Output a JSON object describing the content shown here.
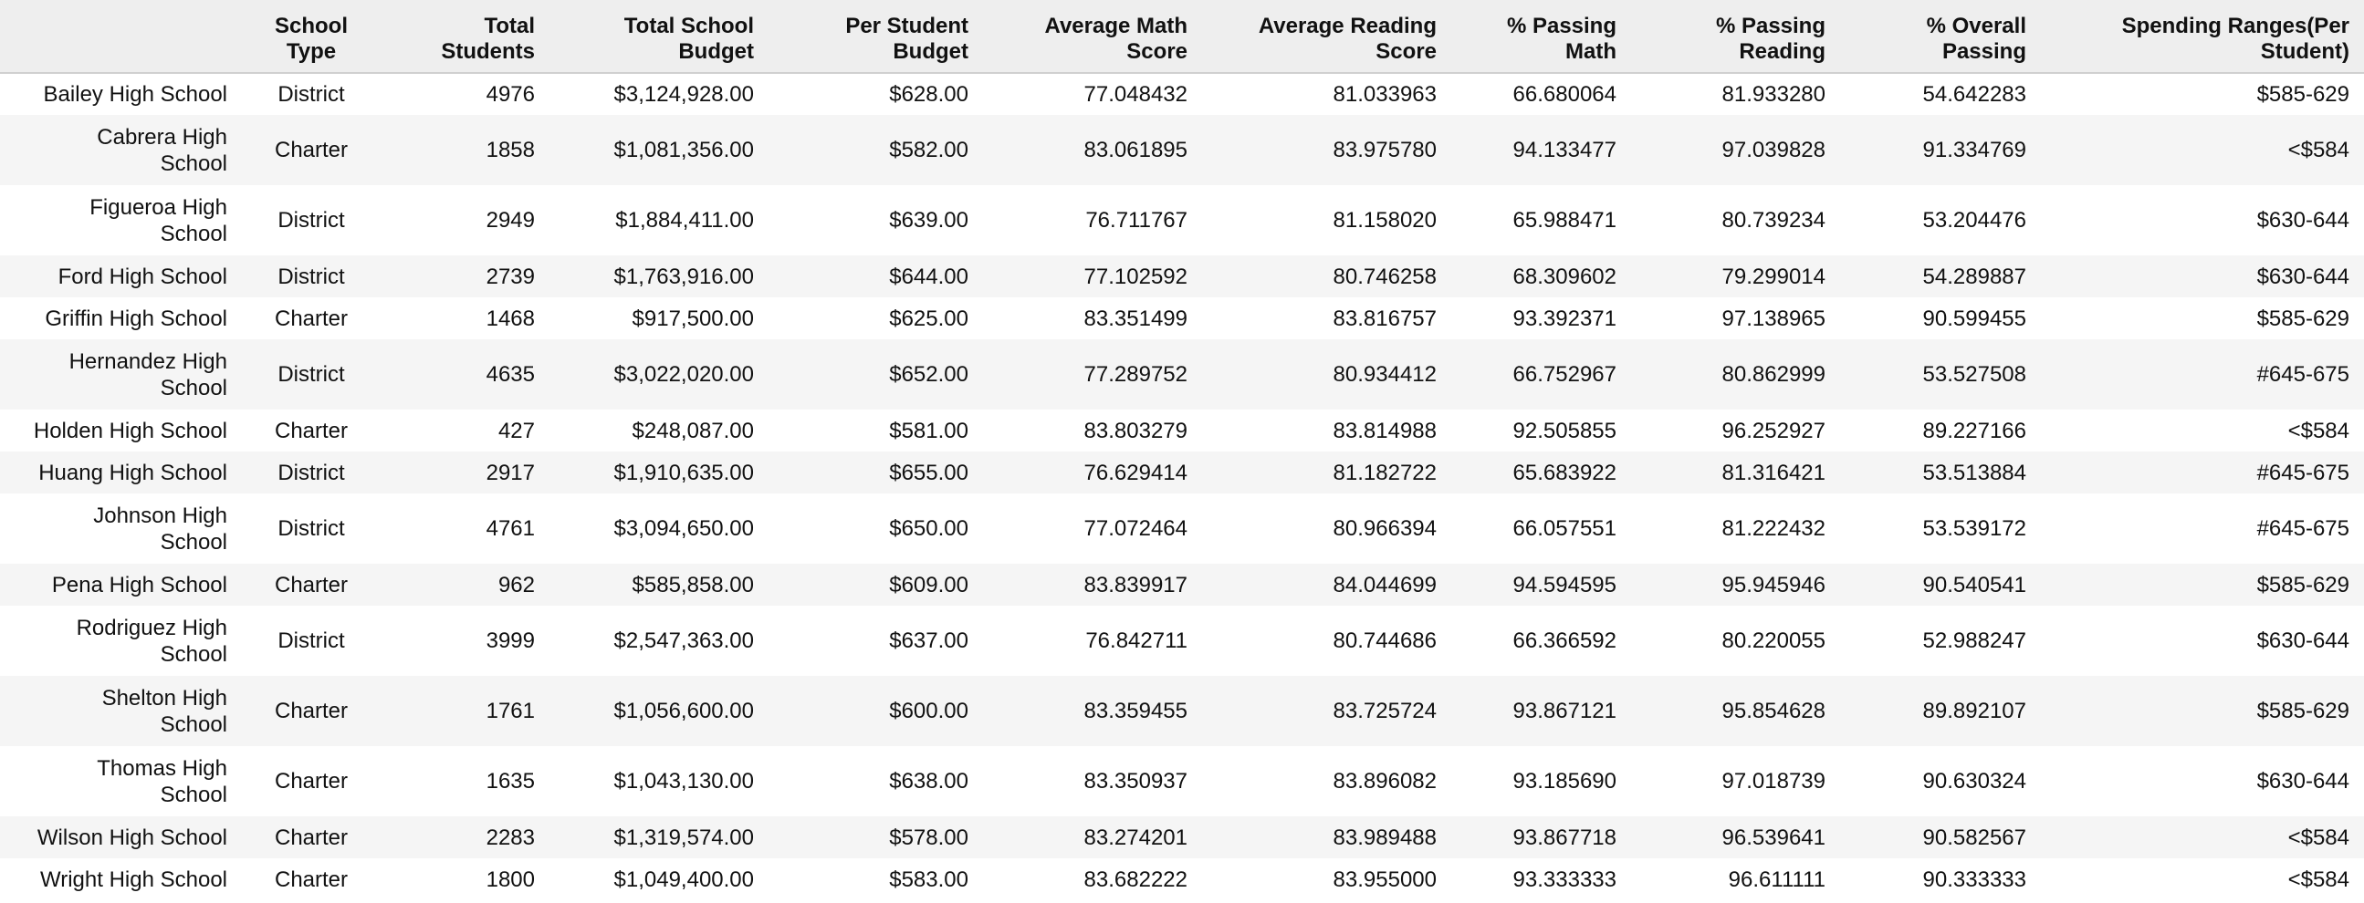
{
  "columns": [
    "",
    "School Type",
    "Total Students",
    "Total School Budget",
    "Per Student Budget",
    "Average Math Score",
    "Average Reading Score",
    "% Passing Math",
    "% Passing Reading",
    "% Overall Passing",
    "Spending Ranges(Per Student)"
  ],
  "column_lines": [
    [
      ""
    ],
    [
      "School",
      "Type"
    ],
    [
      "Total",
      "Students"
    ],
    [
      "Total School",
      "Budget"
    ],
    [
      "Per Student",
      "Budget"
    ],
    [
      "Average Math",
      "Score"
    ],
    [
      "Average Reading",
      "Score"
    ],
    [
      "% Passing",
      "Math"
    ],
    [
      "% Passing",
      "Reading"
    ],
    [
      "% Overall",
      "Passing"
    ],
    [
      "Spending Ranges(Per",
      "Student)"
    ]
  ],
  "rows": [
    {
      "name_lines": [
        "Bailey High School"
      ],
      "type": "District",
      "total": "4976",
      "budget": "$3,124,928.00",
      "per": "$628.00",
      "math": "77.048432",
      "read": "81.033963",
      "pmath": "66.680064",
      "pread": "81.933280",
      "overall": "54.642283",
      "spend": "$585-629"
    },
    {
      "name_lines": [
        "Cabrera High",
        "School"
      ],
      "type": "Charter",
      "total": "1858",
      "budget": "$1,081,356.00",
      "per": "$582.00",
      "math": "83.061895",
      "read": "83.975780",
      "pmath": "94.133477",
      "pread": "97.039828",
      "overall": "91.334769",
      "spend": "<$584"
    },
    {
      "name_lines": [
        "Figueroa High",
        "School"
      ],
      "type": "District",
      "total": "2949",
      "budget": "$1,884,411.00",
      "per": "$639.00",
      "math": "76.711767",
      "read": "81.158020",
      "pmath": "65.988471",
      "pread": "80.739234",
      "overall": "53.204476",
      "spend": "$630-644"
    },
    {
      "name_lines": [
        "Ford High School"
      ],
      "type": "District",
      "total": "2739",
      "budget": "$1,763,916.00",
      "per": "$644.00",
      "math": "77.102592",
      "read": "80.746258",
      "pmath": "68.309602",
      "pread": "79.299014",
      "overall": "54.289887",
      "spend": "$630-644"
    },
    {
      "name_lines": [
        "Griffin High School"
      ],
      "type": "Charter",
      "total": "1468",
      "budget": "$917,500.00",
      "per": "$625.00",
      "math": "83.351499",
      "read": "83.816757",
      "pmath": "93.392371",
      "pread": "97.138965",
      "overall": "90.599455",
      "spend": "$585-629"
    },
    {
      "name_lines": [
        "Hernandez High",
        "School"
      ],
      "type": "District",
      "total": "4635",
      "budget": "$3,022,020.00",
      "per": "$652.00",
      "math": "77.289752",
      "read": "80.934412",
      "pmath": "66.752967",
      "pread": "80.862999",
      "overall": "53.527508",
      "spend": "#645-675"
    },
    {
      "name_lines": [
        "Holden High School"
      ],
      "type": "Charter",
      "total": "427",
      "budget": "$248,087.00",
      "per": "$581.00",
      "math": "83.803279",
      "read": "83.814988",
      "pmath": "92.505855",
      "pread": "96.252927",
      "overall": "89.227166",
      "spend": "<$584"
    },
    {
      "name_lines": [
        "Huang High School"
      ],
      "type": "District",
      "total": "2917",
      "budget": "$1,910,635.00",
      "per": "$655.00",
      "math": "76.629414",
      "read": "81.182722",
      "pmath": "65.683922",
      "pread": "81.316421",
      "overall": "53.513884",
      "spend": "#645-675"
    },
    {
      "name_lines": [
        "Johnson High",
        "School"
      ],
      "type": "District",
      "total": "4761",
      "budget": "$3,094,650.00",
      "per": "$650.00",
      "math": "77.072464",
      "read": "80.966394",
      "pmath": "66.057551",
      "pread": "81.222432",
      "overall": "53.539172",
      "spend": "#645-675"
    },
    {
      "name_lines": [
        "Pena High School"
      ],
      "type": "Charter",
      "total": "962",
      "budget": "$585,858.00",
      "per": "$609.00",
      "math": "83.839917",
      "read": "84.044699",
      "pmath": "94.594595",
      "pread": "95.945946",
      "overall": "90.540541",
      "spend": "$585-629"
    },
    {
      "name_lines": [
        "Rodriguez High",
        "School"
      ],
      "type": "District",
      "total": "3999",
      "budget": "$2,547,363.00",
      "per": "$637.00",
      "math": "76.842711",
      "read": "80.744686",
      "pmath": "66.366592",
      "pread": "80.220055",
      "overall": "52.988247",
      "spend": "$630-644"
    },
    {
      "name_lines": [
        "Shelton High",
        "School"
      ],
      "type": "Charter",
      "total": "1761",
      "budget": "$1,056,600.00",
      "per": "$600.00",
      "math": "83.359455",
      "read": "83.725724",
      "pmath": "93.867121",
      "pread": "95.854628",
      "overall": "89.892107",
      "spend": "$585-629"
    },
    {
      "name_lines": [
        "Thomas High",
        "School"
      ],
      "type": "Charter",
      "total": "1635",
      "budget": "$1,043,130.00",
      "per": "$638.00",
      "math": "83.350937",
      "read": "83.896082",
      "pmath": "93.185690",
      "pread": "97.018739",
      "overall": "90.630324",
      "spend": "$630-644"
    },
    {
      "name_lines": [
        "Wilson High School"
      ],
      "type": "Charter",
      "total": "2283",
      "budget": "$1,319,574.00",
      "per": "$578.00",
      "math": "83.274201",
      "read": "83.989488",
      "pmath": "93.867718",
      "pread": "96.539641",
      "overall": "90.582567",
      "spend": "<$584"
    },
    {
      "name_lines": [
        "Wright High School"
      ],
      "type": "Charter",
      "total": "1800",
      "budget": "$1,049,400.00",
      "per": "$583.00",
      "math": "83.682222",
      "read": "83.955000",
      "pmath": "93.333333",
      "pread": "96.611111",
      "overall": "90.333333",
      "spend": "<$584"
    }
  ]
}
